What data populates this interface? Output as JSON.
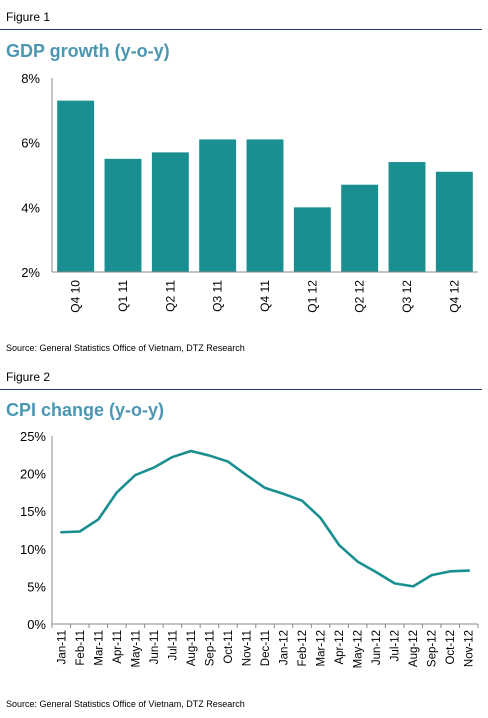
{
  "figure1": {
    "label": "Figure 1",
    "title": "GDP growth (y-o-y)",
    "source": "Source: General Statistics Office of Vietnam, DTZ Research"
  },
  "figure2": {
    "label": "Figure 2",
    "title": "CPI change (y-o-y)",
    "source": "Source: General Statistics Office of Vietnam, DTZ Research"
  },
  "colors": {
    "series": "#1a8f92",
    "title": "#4b97b1",
    "rule": "#1f3864"
  },
  "chart_data": [
    {
      "type": "bar",
      "title": "GDP growth (y-o-y)",
      "categories": [
        "Q4 10",
        "Q1 11",
        "Q2 11",
        "Q3 11",
        "Q4 11",
        "Q1 12",
        "Q2 12",
        "Q3 12",
        "Q4 12"
      ],
      "values": [
        7.3,
        5.5,
        5.7,
        6.1,
        6.1,
        4.0,
        4.7,
        5.4,
        5.1
      ],
      "ylim": [
        2,
        8
      ],
      "yticks": [
        "2%",
        "4%",
        "6%",
        "8%"
      ],
      "ytick_values": [
        2,
        4,
        6,
        8
      ],
      "grid": false,
      "legend": "none"
    },
    {
      "type": "line",
      "title": "CPI change (y-o-y)",
      "x": [
        "Jan-11",
        "Feb-11",
        "Mar-11",
        "Apr-11",
        "May-11",
        "Jun-11",
        "Jul-11",
        "Aug-11",
        "Sep-11",
        "Oct-11",
        "Nov-11",
        "Dec-11",
        "Jan-12",
        "Feb-12",
        "Mar-12",
        "Apr-12",
        "May-12",
        "Jun-12",
        "Jul-12",
        "Aug-12",
        "Sep-12",
        "Oct-12",
        "Nov-12"
      ],
      "values": [
        12.2,
        12.3,
        13.9,
        17.5,
        19.8,
        20.8,
        22.2,
        23.0,
        22.4,
        21.6,
        19.8,
        18.1,
        17.3,
        16.4,
        14.1,
        10.5,
        8.3,
        6.9,
        5.4,
        5.0,
        6.5,
        7.0,
        7.1
      ],
      "ylim": [
        0,
        25
      ],
      "yticks": [
        "0%",
        "5%",
        "10%",
        "15%",
        "20%",
        "25%"
      ],
      "ytick_values": [
        0,
        5,
        10,
        15,
        20,
        25
      ],
      "grid": false,
      "legend": "none"
    }
  ]
}
